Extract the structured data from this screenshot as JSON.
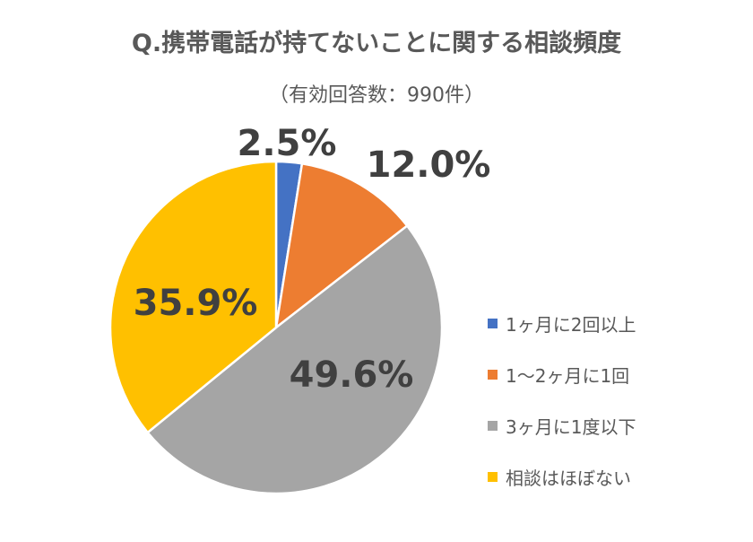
{
  "chart_data": {
    "type": "pie",
    "title": "Q.携帯電話が持てないことに関する相談頻度",
    "subtitle": "（有効回答数：990件）",
    "categories": [
      "1ヶ月に2回以上",
      "1〜2ヶ月に1回",
      "3ヶ月に1度以下",
      "相談はほぼない"
    ],
    "values": [
      2.5,
      12.0,
      49.6,
      35.9
    ],
    "data_labels": [
      "2.5%",
      "12.0%",
      "49.6%",
      "35.9%"
    ],
    "colors": [
      "#4472C4",
      "#ED7D31",
      "#A5A5A5",
      "#FFC000"
    ],
    "start_angle": "12 o'clock",
    "direction": "clockwise",
    "legend_position": "right"
  }
}
